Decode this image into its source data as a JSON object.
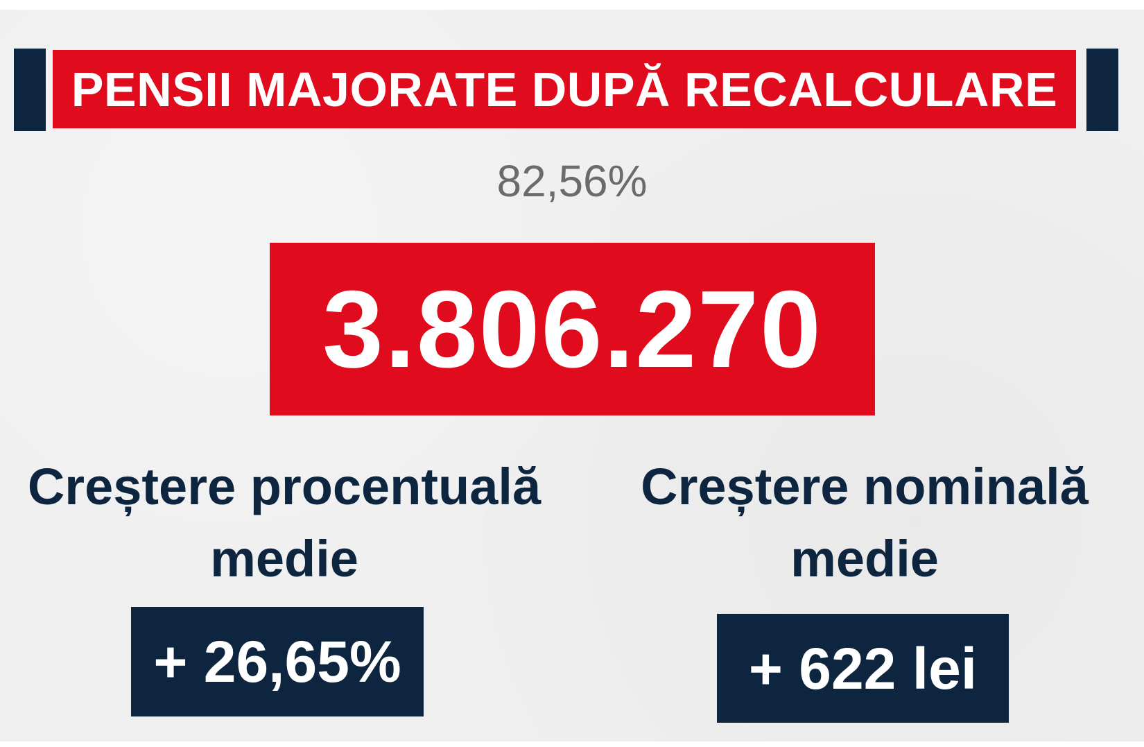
{
  "header": {
    "title": "PENSII MAJORATE DUPĂ RECALCULARE"
  },
  "summary": {
    "share_percent": "82,56%",
    "total_pensions": "3.806.270"
  },
  "stats": {
    "percent_increase": {
      "label_line1": "Creștere procentuală",
      "label_line2": "medie",
      "value": "+ 26,65%"
    },
    "nominal_increase": {
      "label_line1": "Creștere nominală",
      "label_line2": "medie",
      "value": "+ 622 lei"
    }
  },
  "colors": {
    "accent_red": "#e00b1c",
    "navy": "#0e2540",
    "background": "#efefef",
    "muted_text": "#6b6b6b"
  }
}
